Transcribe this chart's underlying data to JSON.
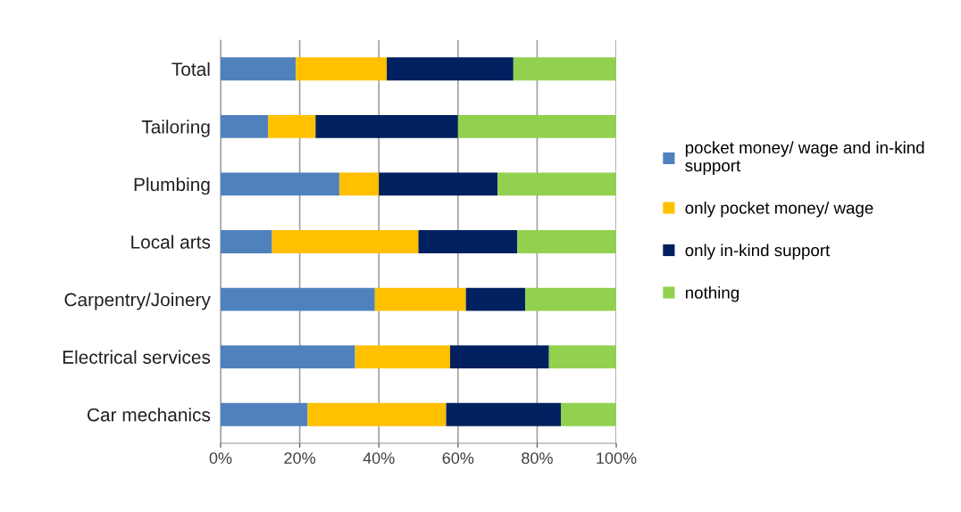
{
  "chart_data": {
    "type": "bar",
    "orientation": "horizontal",
    "stacked": true,
    "categories": [
      "Total",
      "Tailoring",
      "Plumbing",
      "Local arts",
      "Carpentry/Joinery",
      "Electrical services",
      "Car mechanics"
    ],
    "series": [
      {
        "name": "pocket money/ wage and in-kind support",
        "color": "#4f81bd",
        "values": [
          19,
          12,
          30,
          13,
          39,
          34,
          22
        ]
      },
      {
        "name": "only pocket money/ wage",
        "color": "#ffc000",
        "values": [
          23,
          12,
          10,
          37,
          23,
          24,
          35
        ]
      },
      {
        "name": "only in-kind support",
        "color": "#002060",
        "values": [
          32,
          36,
          30,
          25,
          15,
          25,
          29
        ]
      },
      {
        "name": "nothing",
        "color": "#92d050",
        "values": [
          26,
          40,
          30,
          25,
          23,
          17,
          14
        ]
      }
    ],
    "xlim": [
      0,
      100
    ],
    "xticks": [
      {
        "value": 0,
        "label": "0%"
      },
      {
        "value": 20,
        "label": "20%"
      },
      {
        "value": 40,
        "label": "40%"
      },
      {
        "value": 60,
        "label": "60%"
      },
      {
        "value": 80,
        "label": "80%"
      },
      {
        "value": 100,
        "label": "100%"
      }
    ],
    "grid": "x",
    "legend": "right"
  }
}
